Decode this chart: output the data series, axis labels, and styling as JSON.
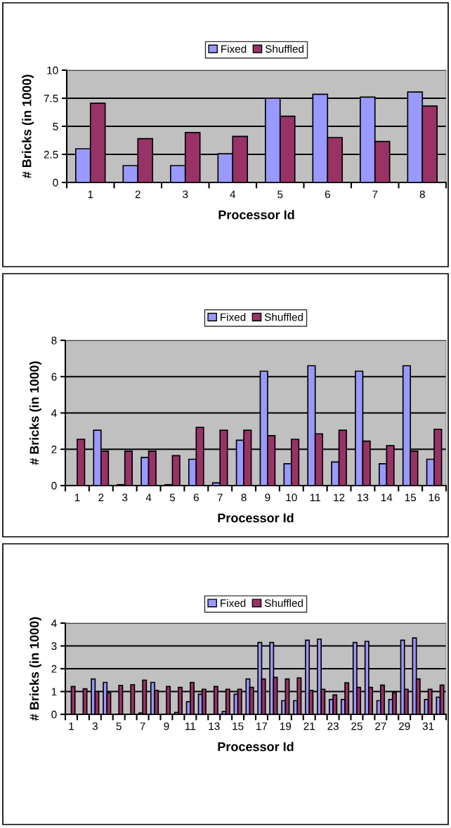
{
  "chart_data": [
    {
      "type": "bar",
      "xlabel": "Processor Id",
      "ylabel": "# Bricks (in 1000)",
      "categories": [
        "1",
        "2",
        "3",
        "4",
        "5",
        "6",
        "7",
        "8"
      ],
      "ylim": [
        0,
        10
      ],
      "yticks": [
        0,
        2.5,
        5,
        7.5,
        10
      ],
      "grid": "y",
      "legend": "top",
      "series": [
        {
          "name": "Fixed",
          "color": "#9999ff",
          "values": [
            3.0,
            1.5,
            1.5,
            2.55,
            7.5,
            7.85,
            7.6,
            8.05
          ]
        },
        {
          "name": "Shuffled",
          "color": "#993366",
          "values": [
            7.05,
            3.9,
            4.45,
            4.1,
            5.9,
            4.0,
            3.65,
            6.8
          ]
        }
      ]
    },
    {
      "type": "bar",
      "xlabel": "Processor Id",
      "ylabel": "# Bricks (in 1000)",
      "categories": [
        "1",
        "2",
        "3",
        "4",
        "5",
        "6",
        "7",
        "8",
        "9",
        "10",
        "11",
        "12",
        "13",
        "14",
        "15",
        "16"
      ],
      "ylim": [
        0,
        8
      ],
      "yticks": [
        0,
        2,
        4,
        6,
        8
      ],
      "grid": "y",
      "legend": "top",
      "series": [
        {
          "name": "Fixed",
          "color": "#9999ff",
          "values": [
            0,
            3.05,
            0.05,
            1.55,
            0.05,
            1.45,
            0.15,
            2.5,
            6.3,
            1.2,
            6.6,
            1.3,
            6.3,
            1.2,
            6.6,
            1.45
          ]
        },
        {
          "name": "Shuffled",
          "color": "#993366",
          "values": [
            2.55,
            1.9,
            1.9,
            1.9,
            1.65,
            3.2,
            3.05,
            3.05,
            2.75,
            2.55,
            2.85,
            3.05,
            2.45,
            2.2,
            1.9,
            3.1
          ]
        }
      ]
    },
    {
      "type": "bar",
      "xlabel": "Processor Id",
      "ylabel": "# Bricks (in 1000)",
      "categories": [
        "1",
        null,
        "3",
        null,
        "5",
        null,
        "7",
        null,
        "9",
        null,
        "11",
        null,
        "13",
        null,
        "15",
        null,
        "17",
        null,
        "19",
        null,
        "21",
        null,
        "23",
        null,
        "25",
        null,
        "27",
        null,
        "29",
        null,
        "31",
        null
      ],
      "ylim": [
        0,
        4
      ],
      "yticks": [
        0,
        1,
        2,
        3,
        4
      ],
      "grid": "y",
      "legend": "top",
      "series": [
        {
          "name": "Fixed",
          "color": "#9999ff",
          "values": [
            0,
            0,
            1.55,
            1.4,
            null,
            0,
            0.06,
            1.4,
            0,
            0.08,
            0.55,
            0.88,
            null,
            0.12,
            0.88,
            1.55,
            3.15,
            3.15,
            0.6,
            0.6,
            3.25,
            3.3,
            0.65,
            0.65,
            3.15,
            3.2,
            0.6,
            0.65,
            3.25,
            3.35,
            0.65,
            0.75
          ]
        },
        {
          "name": "Shuffled",
          "color": "#993366",
          "values": [
            1.22,
            1.12,
            1.0,
            0.95,
            1.27,
            1.3,
            1.5,
            1.05,
            1.22,
            1.18,
            1.4,
            1.1,
            1.22,
            1.1,
            1.1,
            1.18,
            1.55,
            1.62,
            1.55,
            1.6,
            1.05,
            1.1,
            0.85,
            1.38,
            1.18,
            1.18,
            1.28,
            0.95,
            1.1,
            1.55,
            1.1,
            1.28
          ]
        }
      ]
    }
  ]
}
